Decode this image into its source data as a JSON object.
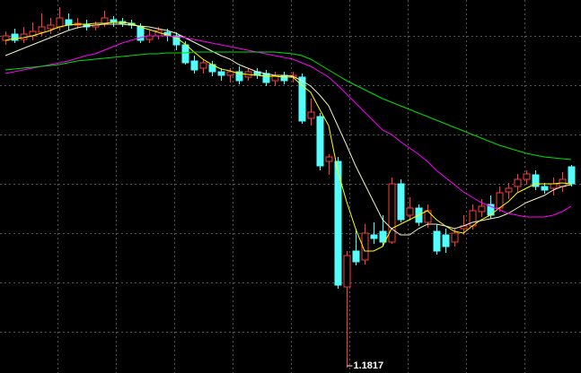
{
  "chart_data": {
    "type": "candlestick",
    "up_color": "#ff3b3b",
    "down_color": "#54fcfc",
    "ylim": [
      1.1811,
      1.2227
    ],
    "yticks": [
      1.2187,
      1.2132,
      1.2077,
      1.2022,
      1.1967,
      1.1912,
      1.1857
    ],
    "grid": true,
    "open": [
      1.2182,
      1.2189,
      1.2183,
      1.2187,
      1.2191,
      1.2195,
      1.2197,
      1.2205,
      1.2199,
      1.22,
      1.2197,
      1.2201,
      1.2205,
      1.2203,
      1.2201,
      1.2197,
      1.2183,
      1.2187,
      1.2191,
      1.2187,
      1.2177,
      1.2159,
      1.2151,
      1.2155,
      1.2147,
      1.2143,
      1.2147,
      1.2141,
      1.2147,
      1.2145,
      1.2137,
      1.2143,
      1.2141,
      1.2141,
      1.2095,
      1.2097,
      1.2047,
      1.2047,
      1.1907,
      1.1947,
      1.1937,
      1.1965,
      1.1969,
      1.1957,
      1.2022,
      1.1987,
      1.1995,
      1.1979,
      1.1969,
      1.1965,
      1.1957,
      1.1972,
      1.1975,
      1.1991,
      1.1999,
      1.1995,
      1.2013,
      1.2019,
      1.2027,
      1.2032,
      1.2019,
      1.2017,
      1.2019,
      1.2041
    ],
    "high": [
      1.2192,
      1.2195,
      1.2197,
      1.2202,
      1.2212,
      1.2207,
      1.2219,
      1.2212,
      1.2207,
      1.2205,
      1.2203,
      1.2215,
      1.2209,
      1.2207,
      1.2205,
      1.2201,
      1.2193,
      1.2197,
      1.2195,
      1.2191,
      1.2181,
      1.2165,
      1.2161,
      1.2159,
      1.2151,
      1.2151,
      1.2153,
      1.2151,
      1.2151,
      1.2149,
      1.2147,
      1.2147,
      1.2147,
      1.2145,
      1.2117,
      1.2101,
      1.2055,
      1.2052,
      1.1947,
      1.1972,
      1.1977,
      1.1979,
      1.1987,
      1.2029,
      1.2027,
      1.2007,
      1.1999,
      1.1999,
      1.1977,
      1.1972,
      1.1972,
      1.1987,
      1.1999,
      1.2005,
      1.2009,
      1.2019,
      1.2023,
      1.2033,
      1.2037,
      1.2037,
      1.2023,
      1.2029,
      1.2035,
      1.2043
    ],
    "low": [
      1.2177,
      1.2179,
      1.2179,
      1.2182,
      1.2187,
      1.2189,
      1.2193,
      1.2193,
      1.2195,
      1.2193,
      1.2193,
      1.2197,
      1.2197,
      1.2197,
      1.2195,
      1.2179,
      1.2179,
      1.2183,
      1.2181,
      1.2171,
      1.2155,
      1.2145,
      1.2145,
      1.2142,
      1.2137,
      1.2135,
      1.2133,
      1.2137,
      1.2139,
      1.2131,
      1.2131,
      1.2133,
      1.2135,
      1.2089,
      1.2087,
      1.2037,
      1.2032,
      1.1905,
      1.1817,
      1.1931,
      1.1932,
      1.1955,
      1.1952,
      1.1955,
      1.1979,
      1.1981,
      1.1975,
      1.1973,
      1.1943,
      1.1945,
      1.1952,
      1.1965,
      1.1971,
      1.1985,
      1.1983,
      1.1991,
      1.2005,
      1.2013,
      1.2021,
      1.2015,
      1.2011,
      1.2009,
      1.2013,
      1.2019
    ],
    "close": [
      1.2187,
      1.2182,
      1.2189,
      1.2192,
      1.2197,
      1.2199,
      1.2207,
      1.2199,
      1.2201,
      1.2197,
      1.2199,
      1.2207,
      1.2202,
      1.2201,
      1.2199,
      1.2182,
      1.2187,
      1.2193,
      1.2187,
      1.2177,
      1.2157,
      1.2149,
      1.2157,
      1.2147,
      1.2143,
      1.2147,
      1.2137,
      1.2147,
      1.2143,
      1.2135,
      1.2143,
      1.2137,
      1.2143,
      1.2092,
      1.2102,
      1.2042,
      1.2052,
      1.1909,
      1.1942,
      1.1935,
      1.1967,
      1.1961,
      1.1957,
      1.2022,
      1.1982,
      1.1995,
      1.1979,
      1.1992,
      1.1947,
      1.1952,
      1.1967,
      1.1975,
      1.1992,
      1.1997,
      1.1987,
      1.2012,
      1.2017,
      1.2027,
      1.2033,
      1.2019,
      1.2015,
      1.2022,
      1.2027,
      1.2022
    ],
    "series": [
      {
        "color": "#ffff00",
        "values": [
          1.2182,
          1.2184,
          1.2185,
          1.2187,
          1.219,
          1.2193,
          1.2197,
          1.2199,
          1.22,
          1.22,
          1.2201,
          1.2201,
          1.2202,
          1.2202,
          1.2201,
          1.2197,
          1.2194,
          1.2191,
          1.2188,
          1.2185,
          1.2178,
          1.2169,
          1.2161,
          1.2155,
          1.215,
          1.2148,
          1.2145,
          1.2144,
          1.2143,
          1.2142,
          1.2142,
          1.2141,
          1.2141,
          1.2132,
          1.2124,
          1.2105,
          1.2087,
          1.2037,
          1.2002,
          1.1972,
          1.1947,
          1.1947,
          1.1952,
          1.1972,
          1.1977,
          1.1982,
          1.1987,
          1.1992,
          1.1982,
          1.1975,
          1.1969,
          1.1967,
          1.1975,
          1.1982,
          1.1987,
          1.1995,
          1.2002,
          1.2012,
          1.2017,
          1.2022,
          1.2022,
          1.2022,
          1.2023,
          1.2022
        ]
      },
      {
        "color": "#f0f0c8",
        "values": [
          1.2165,
          1.2169,
          1.2173,
          1.2177,
          1.2181,
          1.2185,
          1.2189,
          1.2193,
          1.2196,
          1.2198,
          1.2199,
          1.22,
          1.22,
          1.22,
          1.2199,
          1.2198,
          1.2197,
          1.2195,
          1.2193,
          1.219,
          1.2185,
          1.218,
          1.2175,
          1.217,
          1.2165,
          1.2161,
          1.2155,
          1.2151,
          1.2147,
          1.2145,
          1.2143,
          1.2143,
          1.2142,
          1.2137,
          1.2131,
          1.2121,
          1.2109,
          1.2087,
          1.2065,
          1.2042,
          1.2022,
          1.2002,
          1.1982,
          1.1972,
          1.1965,
          1.1965,
          1.1972,
          1.1977,
          1.1977,
          1.1975,
          1.1972,
          1.1975,
          1.1979,
          1.1981,
          1.1983,
          1.1985,
          1.1989,
          1.1995,
          1.2001,
          1.2005,
          1.2009,
          1.2015,
          1.2019,
          1.2021
        ]
      },
      {
        "color": "#ff00ff",
        "values": [
          1.2145,
          1.2147,
          1.2149,
          1.2151,
          1.2153,
          1.2155,
          1.2157,
          1.2159,
          1.2162,
          1.2165,
          1.2167,
          1.2171,
          1.2175,
          1.2179,
          1.2182,
          1.2185,
          1.2187,
          1.2187,
          1.2187,
          1.2186,
          1.2185,
          1.2183,
          1.2181,
          1.2179,
          1.2177,
          1.2175,
          1.2173,
          1.2171,
          1.2169,
          1.2167,
          1.2165,
          1.2163,
          1.2161,
          1.2157,
          1.2153,
          1.2147,
          1.2141,
          1.2132,
          1.2122,
          1.2112,
          1.2102,
          1.2092,
          1.2082,
          1.2077,
          1.2069,
          1.2062,
          1.2055,
          1.2047,
          1.2037,
          1.2029,
          1.2021,
          1.2013,
          1.2007,
          1.2001,
          1.1997,
          1.1993,
          1.1989,
          1.1987,
          1.1985,
          1.1985,
          1.1985,
          1.1987,
          1.1991,
          1.1997
        ]
      },
      {
        "color": "#00e000",
        "values": [
          1.2149,
          1.215,
          1.2151,
          1.2152,
          1.2153,
          1.2154,
          1.2155,
          1.2157,
          1.2159,
          1.216,
          1.2161,
          1.2162,
          1.2163,
          1.2164,
          1.2165,
          1.2166,
          1.2167,
          1.2167,
          1.2168,
          1.2168,
          1.2168,
          1.2169,
          1.2169,
          1.2169,
          1.2169,
          1.2169,
          1.2169,
          1.2169,
          1.2169,
          1.2169,
          1.2169,
          1.2168,
          1.2167,
          1.2165,
          1.2161,
          1.2155,
          1.2149,
          1.2143,
          1.2137,
          1.2132,
          1.2127,
          1.2122,
          1.2117,
          1.2113,
          1.2109,
          1.2105,
          1.2101,
          1.2097,
          1.2093,
          1.2089,
          1.2085,
          1.2081,
          1.2077,
          1.2073,
          1.2069,
          1.2065,
          1.2062,
          1.2059,
          1.2056,
          1.2054,
          1.2052,
          1.2051,
          1.205,
          1.2049
        ]
      }
    ]
  }
}
